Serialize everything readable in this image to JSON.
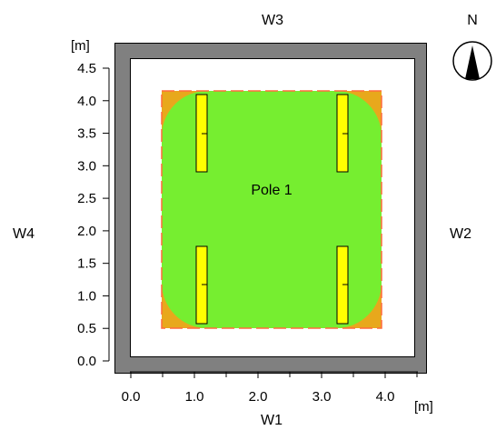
{
  "walls": {
    "south": "W1",
    "east": "W2",
    "north": "W3",
    "west": "W4"
  },
  "axes": {
    "x_unit": "[m]",
    "y_unit": "[m]",
    "x_ticks": [
      "0.0",
      "1.0",
      "2.0",
      "3.0",
      "4.0"
    ],
    "y_ticks": [
      "0.0",
      "0.5",
      "1.0",
      "1.5",
      "2.0",
      "2.5",
      "3.0",
      "3.5",
      "4.0",
      "4.5"
    ]
  },
  "compass": {
    "label": "N",
    "icon": "north-arrow-icon"
  },
  "pole": {
    "label": "Pole 1"
  },
  "colors": {
    "wall": "#808080",
    "playing_field": "#76ee30",
    "outer_zone": "#e8a81c",
    "luminaire": "#ffff00",
    "boundary_dash": "#ff6a3d"
  },
  "luminaires": [
    {
      "name": "luminaire-top-left"
    },
    {
      "name": "luminaire-top-right"
    },
    {
      "name": "luminaire-bottom-left"
    },
    {
      "name": "luminaire-bottom-right"
    }
  ]
}
